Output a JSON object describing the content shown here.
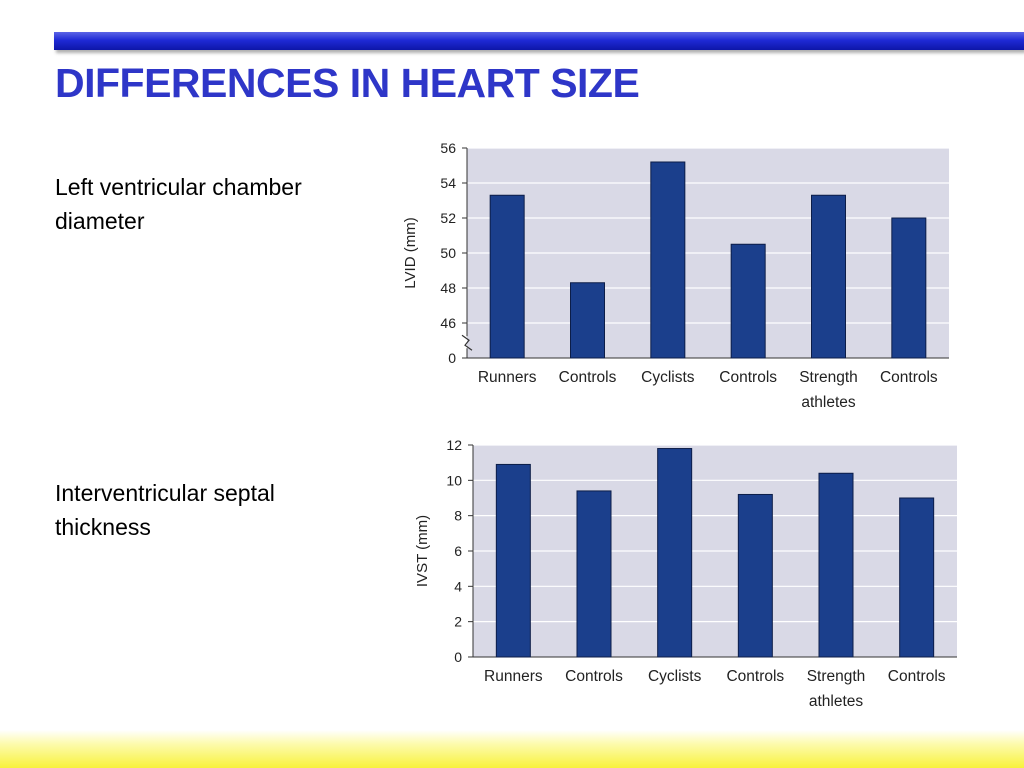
{
  "slide": {
    "title": "DIFFERENCES IN HEART SIZE",
    "label1": [
      "Left ventricular chamber",
      "diameter"
    ],
    "label2": [
      "Interventricular septal",
      "thickness"
    ]
  },
  "chart_data": [
    {
      "type": "bar",
      "ylabel": "LVID (mm)",
      "categories": [
        [
          "Runners"
        ],
        [
          "Controls"
        ],
        [
          "Cyclists"
        ],
        [
          "Controls"
        ],
        [
          "Strength",
          "athletes"
        ],
        [
          "Controls"
        ]
      ],
      "values": [
        53.3,
        48.3,
        55.2,
        50.5,
        53.3,
        52.0
      ],
      "yticks": [
        "56",
        "54",
        "52",
        "50",
        "48",
        "46",
        "0"
      ],
      "ylim": [
        46,
        56
      ],
      "axis_break": true,
      "grid": true,
      "colors": {
        "bar": "#1b3f8c",
        "plot_bg": "#d9d9e6"
      }
    },
    {
      "type": "bar",
      "ylabel": "IVST (mm)",
      "categories": [
        [
          "Runners"
        ],
        [
          "Controls"
        ],
        [
          "Cyclists"
        ],
        [
          "Controls"
        ],
        [
          "Strength",
          "athletes"
        ],
        [
          "Controls"
        ]
      ],
      "values": [
        10.9,
        9.4,
        11.8,
        9.2,
        10.4,
        9.0
      ],
      "yticks": [
        "12",
        "10",
        "8",
        "6",
        "4",
        "2",
        "0"
      ],
      "ylim": [
        0,
        12
      ],
      "axis_break": false,
      "grid": true,
      "colors": {
        "bar": "#1b3f8c",
        "plot_bg": "#d9d9e6"
      }
    }
  ]
}
